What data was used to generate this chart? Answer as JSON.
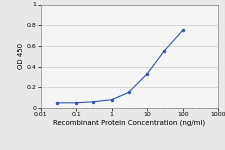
{
  "x": [
    0.03,
    0.1,
    0.3,
    1,
    3,
    10,
    30,
    100
  ],
  "y": [
    0.05,
    0.05,
    0.06,
    0.08,
    0.15,
    0.33,
    0.55,
    0.75
  ],
  "line_color": "#3355aa",
  "marker": "o",
  "marker_size": 2.0,
  "marker_facecolor": "#3355aa",
  "xlabel": "Recombinant Protein Concentration (ng/ml)",
  "ylabel": "OD 450",
  "xlim": [
    0.01,
    1000
  ],
  "ylim": [
    0,
    1
  ],
  "yticks": [
    0,
    0.2,
    0.4,
    0.6,
    0.8,
    1
  ],
  "xticks": [
    0.01,
    0.1,
    1,
    10,
    100,
    1000
  ],
  "xtick_labels": [
    "0.01",
    "0.1",
    "1",
    "10",
    "100",
    "1000"
  ],
  "ytick_labels": [
    "0",
    "0.2",
    "0.4",
    "0.6",
    "0.8",
    "1"
  ],
  "background_color": "#e8e8e8",
  "plot_bg_color": "#f5f5f5",
  "grid_color": "#cccccc",
  "xlabel_fontsize": 5.0,
  "ylabel_fontsize": 5.0,
  "tick_fontsize": 4.5,
  "linewidth": 0.8
}
